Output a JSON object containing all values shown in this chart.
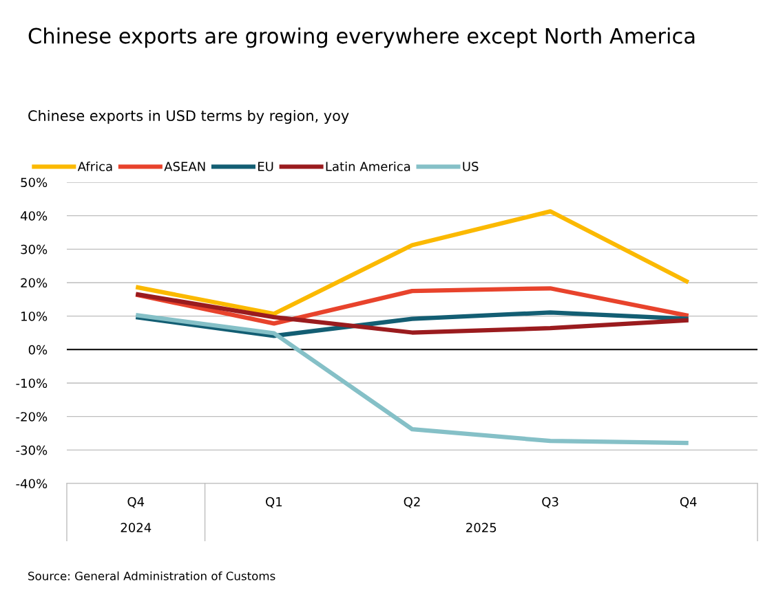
{
  "chart_data": {
    "type": "line",
    "title": "Chinese exports are growing everywhere except North America",
    "subtitle": "Chinese exports in USD terms by region, yoy",
    "categories": [
      "Q4",
      "Q1",
      "Q2",
      "Q3",
      "Q4"
    ],
    "series": [
      {
        "name": "Africa",
        "color": "#fbb900",
        "values": [
          18.7,
          10.7,
          31.2,
          41.3,
          20.1
        ]
      },
      {
        "name": "ASEAN",
        "color": "#e8432c",
        "values": [
          16.4,
          7.8,
          17.5,
          18.3,
          10.1
        ]
      },
      {
        "name": "EU",
        "color": "#135e73",
        "values": [
          9.7,
          4.1,
          9.2,
          11.1,
          9.2
        ]
      },
      {
        "name": "Latin America",
        "color": "#9a1b1e",
        "values": [
          16.6,
          9.7,
          5.1,
          6.4,
          8.8
        ]
      },
      {
        "name": "US",
        "color": "#85c0c7",
        "values": [
          10.3,
          4.9,
          -23.8,
          -27.3,
          -27.9
        ]
      }
    ],
    "ylim": [
      -40,
      50
    ],
    "yticks": [
      {
        "value": -40,
        "label": "-40%"
      },
      {
        "value": -30,
        "label": "-30%"
      },
      {
        "value": -20,
        "label": "-20%"
      },
      {
        "value": -10,
        "label": "-10%"
      },
      {
        "value": 0,
        "label": "0%"
      },
      {
        "value": 10,
        "label": "10%"
      },
      {
        "value": 20,
        "label": "20%"
      },
      {
        "value": 30,
        "label": "30%"
      },
      {
        "value": 40,
        "label": "40%"
      },
      {
        "value": 50,
        "label": "50%"
      }
    ],
    "ref_lines": [
      {
        "axis": "y",
        "value": 0,
        "color": "#000000"
      }
    ],
    "grid": "y",
    "legend": "top left",
    "annotations": [
      "2024",
      "2025",
      "Source: General Administration of Customs"
    ]
  }
}
